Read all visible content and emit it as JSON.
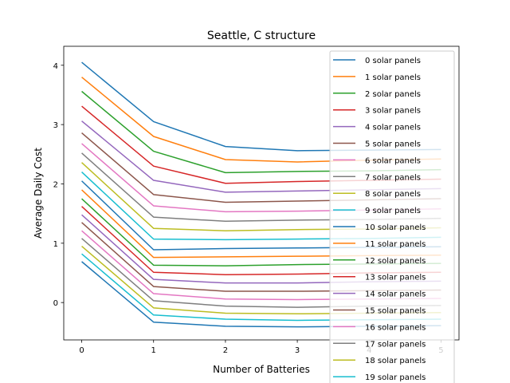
{
  "chart_data": {
    "type": "line",
    "title": "Seattle, C structure",
    "xlabel": "Number of Batteries",
    "ylabel": "Average Daily Cost",
    "x": [
      0,
      1,
      2,
      3,
      4,
      5
    ],
    "x_ticks": [
      "0",
      "1",
      "2",
      "3",
      "4",
      "5"
    ],
    "y_ticks": [
      "0",
      "1",
      "2",
      "3",
      "4"
    ],
    "xlim": [
      -0.25,
      5.25
    ],
    "ylim": [
      -0.63,
      4.32
    ],
    "grid": false,
    "legend_position": "top-right",
    "series": [
      {
        "name": "0 solar panels",
        "color": "#1f77b4",
        "values": [
          4.05,
          3.05,
          2.63,
          2.56,
          2.57,
          2.58
        ]
      },
      {
        "name": "1 solar panels",
        "color": "#ff7f0e",
        "values": [
          3.8,
          2.8,
          2.41,
          2.37,
          2.4,
          2.42
        ]
      },
      {
        "name": "2 solar panels",
        "color": "#2ca02c",
        "values": [
          3.56,
          2.55,
          2.19,
          2.21,
          2.22,
          2.24
        ]
      },
      {
        "name": "3 solar panels",
        "color": "#d62728",
        "values": [
          3.31,
          2.3,
          2.01,
          2.04,
          2.06,
          2.08
        ]
      },
      {
        "name": "4 solar panels",
        "color": "#9467bd",
        "values": [
          3.06,
          2.06,
          1.86,
          1.88,
          1.9,
          1.92
        ]
      },
      {
        "name": "5 solar panels",
        "color": "#8c564b",
        "values": [
          2.86,
          1.82,
          1.69,
          1.71,
          1.73,
          1.75
        ]
      },
      {
        "name": "6 solar panels",
        "color": "#e377c2",
        "values": [
          2.68,
          1.63,
          1.53,
          1.54,
          1.56,
          1.58
        ]
      },
      {
        "name": "7 solar panels",
        "color": "#7f7f7f",
        "values": [
          2.52,
          1.44,
          1.37,
          1.39,
          1.4,
          1.42
        ]
      },
      {
        "name": "8 solar panels",
        "color": "#bcbd22",
        "values": [
          2.36,
          1.25,
          1.21,
          1.23,
          1.24,
          1.26
        ]
      },
      {
        "name": "9 solar panels",
        "color": "#17becf",
        "values": [
          2.2,
          1.07,
          1.06,
          1.07,
          1.08,
          1.1
        ]
      },
      {
        "name": "10 solar panels",
        "color": "#1f77b4",
        "values": [
          2.05,
          0.89,
          0.91,
          0.92,
          0.93,
          0.94
        ]
      },
      {
        "name": "11 solar panels",
        "color": "#ff7f0e",
        "values": [
          1.9,
          0.76,
          0.77,
          0.78,
          0.79,
          0.8
        ]
      },
      {
        "name": "12 solar panels",
        "color": "#2ca02c",
        "values": [
          1.75,
          0.63,
          0.62,
          0.64,
          0.65,
          0.66
        ]
      },
      {
        "name": "13 solar panels",
        "color": "#d62728",
        "values": [
          1.62,
          0.51,
          0.47,
          0.48,
          0.5,
          0.51
        ]
      },
      {
        "name": "14 solar panels",
        "color": "#9467bd",
        "values": [
          1.48,
          0.39,
          0.33,
          0.33,
          0.35,
          0.36
        ]
      },
      {
        "name": "15 solar panels",
        "color": "#8c564b",
        "values": [
          1.35,
          0.27,
          0.19,
          0.19,
          0.2,
          0.21
        ]
      },
      {
        "name": "16 solar panels",
        "color": "#e377c2",
        "values": [
          1.21,
          0.15,
          0.06,
          0.05,
          0.06,
          0.07
        ]
      },
      {
        "name": "17 solar panels",
        "color": "#7f7f7f",
        "values": [
          1.08,
          0.03,
          -0.06,
          -0.08,
          -0.06,
          -0.05
        ]
      },
      {
        "name": "18 solar panels",
        "color": "#bcbd22",
        "values": [
          0.95,
          -0.09,
          -0.18,
          -0.19,
          -0.18,
          -0.17
        ]
      },
      {
        "name": "19 solar panels",
        "color": "#17becf",
        "values": [
          0.82,
          -0.21,
          -0.28,
          -0.3,
          -0.29,
          -0.28
        ]
      },
      {
        "name": "",
        "color": "#1f77b4",
        "values": [
          0.69,
          -0.33,
          -0.4,
          -0.41,
          -0.4,
          -0.39
        ]
      }
    ]
  }
}
